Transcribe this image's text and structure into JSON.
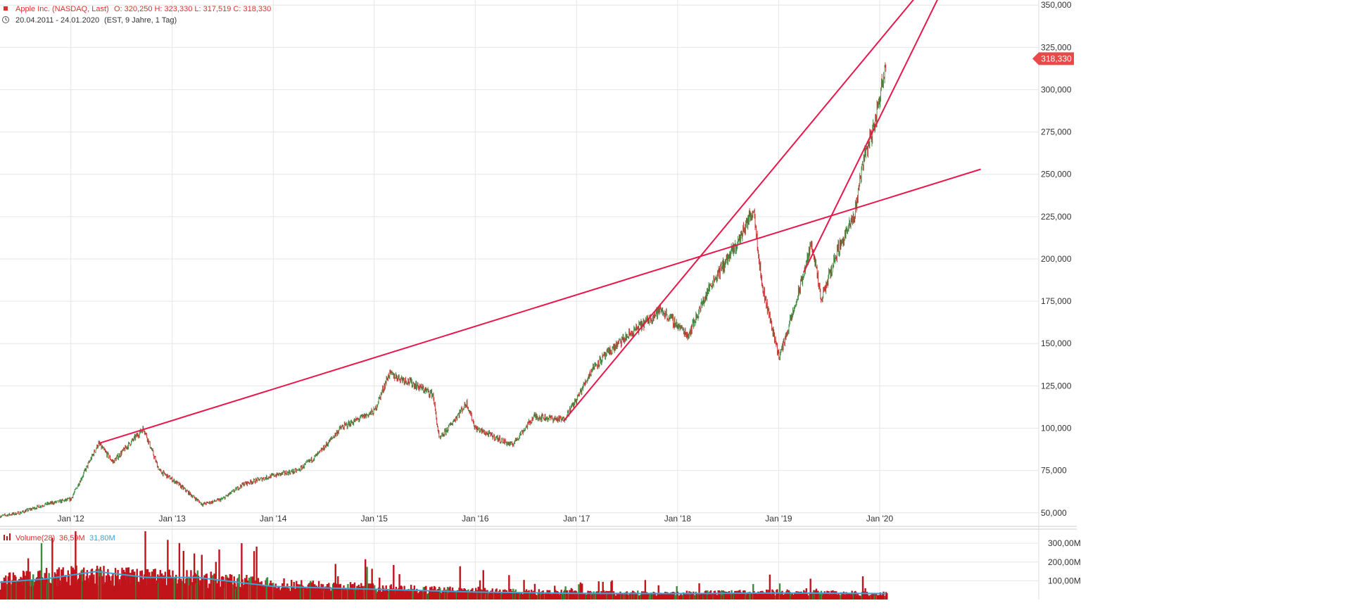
{
  "header": {
    "instrument": "Apple Inc. (NASDAQ, Last)",
    "ohlc": "O: 320,250  H: 323,330  L: 317,519  C: 318,330",
    "range": "20.04.2011 - 24.01.2020",
    "range_detail": "(EST, 9 Jahre, 1 Tag)"
  },
  "last_price_badge": "318,330",
  "volume_legend": {
    "label": "Volume(28)",
    "value_1": "36,59M",
    "value_2": "31,80M"
  },
  "colors": {
    "trendline": "#e8174a",
    "bull": "#3d8b3d",
    "bear": "#c62828",
    "volume_bar": "#c0141b",
    "volume_ma": "#3aa3d6",
    "badge": "#e84a4a",
    "grid": "#e6e6e6"
  },
  "chart_data": [
    {
      "type": "line",
      "title": "Apple Inc. (NASDAQ, Last)",
      "x_ticks": [
        "Jan '12",
        "Jan '13",
        "Jan '14",
        "Jan '15",
        "Jan '16",
        "Jan '17",
        "Jan '18",
        "Jan '19",
        "Jan '20"
      ],
      "y_ticks": [
        "50,000",
        "75,000",
        "100,000",
        "125,000",
        "150,000",
        "175,000",
        "200,000",
        "225,000",
        "250,000",
        "275,000",
        "300,000",
        "325,000",
        "350,000"
      ],
      "ylim": [
        42,
        353
      ],
      "series": [
        {
          "x": [
            "2011-04-20",
            "2011-07-01",
            "2011-10-01",
            "2012-01-01",
            "2012-04-10",
            "2012-06-01",
            "2012-09-20",
            "2012-11-15",
            "2013-01-15",
            "2013-04-20",
            "2013-07-01",
            "2013-09-15",
            "2014-01-01",
            "2014-04-01",
            "2014-06-15",
            "2014-09-01",
            "2015-01-01",
            "2015-02-23",
            "2015-05-01",
            "2015-08-01",
            "2015-08-24",
            "2015-12-01",
            "2016-01-01",
            "2016-05-12",
            "2016-08-01",
            "2016-11-14",
            "2017-01-01",
            "2017-03-01",
            "2017-06-01",
            "2017-09-01",
            "2017-11-01",
            "2018-02-08",
            "2018-05-01",
            "2018-08-01",
            "2018-10-03",
            "2018-11-01",
            "2019-01-03",
            "2019-03-01",
            "2019-05-01",
            "2019-06-03",
            "2019-08-01",
            "2019-10-01",
            "2019-11-01",
            "2019-12-15",
            "2020-01-24"
          ],
          "values": [
            48,
            50,
            55,
            58,
            91,
            80,
            100,
            75,
            68,
            55,
            58,
            67,
            72,
            75,
            85,
            100,
            110,
            132,
            128,
            120,
            93,
            115,
            100,
            90,
            107,
            105,
            117,
            136,
            150,
            162,
            170,
            155,
            185,
            208,
            230,
            185,
            142,
            172,
            210,
            175,
            205,
            225,
            258,
            280,
            318
          ]
        }
      ],
      "trendlines": [
        {
          "from": [
            "2012-04-10",
            91
          ],
          "to": [
            "2020-12-31",
            253
          ]
        },
        {
          "from": [
            "2016-11-14",
            104
          ],
          "to": [
            "2020-07-01",
            365
          ]
        },
        {
          "from": [
            "2019-04-01",
            192
          ],
          "to": [
            "2020-09-01",
            365
          ]
        }
      ],
      "last_value": 318.33
    },
    {
      "type": "bar",
      "title": "Volume(28)",
      "y_ticks": [
        "100,00M",
        "200,00M",
        "300,00M"
      ],
      "ylim": [
        0,
        372
      ],
      "series": [
        {
          "name": "Volume",
          "profile_x": [
            "2011-04-20",
            "2011-10-01",
            "2012-04-01",
            "2012-10-01",
            "2013-04-01",
            "2014-01-01",
            "2015-01-01",
            "2016-01-01",
            "2017-01-01",
            "2018-01-01",
            "2019-01-01",
            "2020-01-24"
          ],
          "profile_y": [
            95,
            120,
            130,
            115,
            110,
            80,
            60,
            45,
            35,
            32,
            38,
            30
          ]
        },
        {
          "name": "MA(28)",
          "x": [
            "2011-04-20",
            "2011-10-01",
            "2012-04-01",
            "2012-10-01",
            "2013-04-01",
            "2014-01-01",
            "2015-01-01",
            "2016-01-01",
            "2017-01-01",
            "2018-01-01",
            "2019-01-01",
            "2020-01-24"
          ],
          "values": [
            92,
            110,
            150,
            118,
            118,
            70,
            55,
            40,
            33,
            32,
            35,
            32
          ]
        }
      ]
    }
  ]
}
